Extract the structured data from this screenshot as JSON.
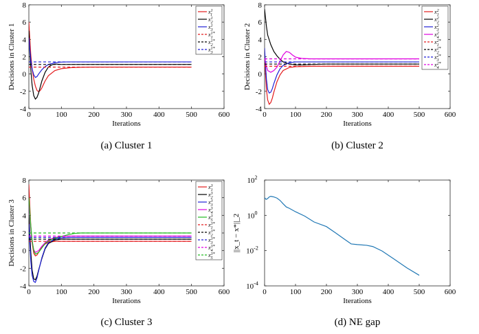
{
  "chart_data": [
    {
      "type": "line",
      "caption": "(a) Cluster 1",
      "xlabel": "Iterations",
      "ylabel": "Decisions in Cluster 1",
      "xlim": [
        0,
        600
      ],
      "ylim": [
        -4,
        8
      ],
      "xticks": [
        0,
        100,
        200,
        300,
        400,
        500,
        600
      ],
      "yticks": [
        -4,
        -2,
        0,
        2,
        4,
        6,
        8
      ],
      "legend_position": "top-right",
      "grid": false,
      "series": [
        {
          "name": "x_1^1",
          "color": "#e31a1c",
          "dash": false,
          "x": [
            0,
            3,
            6,
            10,
            15,
            20,
            25,
            30,
            35,
            40,
            50,
            60,
            80,
            100,
            130,
            160,
            200,
            250,
            300,
            500
          ],
          "values": [
            6.0,
            4.0,
            2.2,
            0.6,
            -0.6,
            -1.4,
            -1.9,
            -2.05,
            -1.9,
            -1.6,
            -0.8,
            -0.2,
            0.4,
            0.62,
            0.74,
            0.78,
            0.8,
            0.8,
            0.8,
            0.8
          ]
        },
        {
          "name": "x_2^1",
          "color": "#000000",
          "dash": false,
          "x": [
            0,
            3,
            6,
            10,
            15,
            20,
            25,
            30,
            40,
            50,
            60,
            70,
            80,
            100,
            130,
            160,
            200,
            300,
            500
          ],
          "values": [
            5.0,
            2.5,
            0.5,
            -1.3,
            -2.5,
            -2.9,
            -2.7,
            -2.2,
            -0.8,
            0.2,
            0.8,
            1.05,
            1.15,
            1.1,
            1.1,
            1.1,
            1.1,
            1.1,
            1.1
          ]
        },
        {
          "name": "x_3^1",
          "color": "#1f1fd6",
          "dash": false,
          "x": [
            0,
            3,
            6,
            10,
            15,
            20,
            25,
            30,
            40,
            50,
            60,
            80,
            100,
            120,
            150,
            200,
            300,
            500
          ],
          "values": [
            4.2,
            2.8,
            1.6,
            0.6,
            -0.1,
            -0.4,
            -0.3,
            0.0,
            0.5,
            0.85,
            1.1,
            1.3,
            1.38,
            1.4,
            1.4,
            1.4,
            1.4,
            1.4
          ]
        },
        {
          "name": "x_1^{1*}",
          "color": "#e31a1c",
          "dash": true,
          "x": [
            0,
            500
          ],
          "values": [
            0.8,
            0.8
          ]
        },
        {
          "name": "x_2^{1*}",
          "color": "#000000",
          "dash": true,
          "x": [
            0,
            500
          ],
          "values": [
            1.1,
            1.1
          ]
        },
        {
          "name": "x_3^{1*}",
          "color": "#1f1fd6",
          "dash": true,
          "x": [
            0,
            500
          ],
          "values": [
            1.4,
            1.4
          ]
        }
      ]
    },
    {
      "type": "line",
      "caption": "(b) Cluster 2",
      "xlabel": "Iterations",
      "ylabel": "Decisions in Cluster 2",
      "xlim": [
        0,
        600
      ],
      "ylim": [
        -4,
        8
      ],
      "xticks": [
        0,
        100,
        200,
        300,
        400,
        500,
        600
      ],
      "yticks": [
        -4,
        -2,
        0,
        2,
        4,
        6,
        8
      ],
      "legend_position": "top-right",
      "grid": false,
      "series": [
        {
          "name": "x_1^2",
          "color": "#e31a1c",
          "dash": false,
          "x": [
            0,
            3,
            6,
            10,
            15,
            20,
            25,
            30,
            40,
            50,
            60,
            80,
            100,
            130,
            160,
            200,
            300,
            500
          ],
          "values": [
            2.0,
            0.0,
            -1.8,
            -3.0,
            -3.5,
            -3.3,
            -2.8,
            -2.1,
            -0.9,
            -0.1,
            0.4,
            0.75,
            0.85,
            0.88,
            0.9,
            0.9,
            0.9,
            0.9
          ]
        },
        {
          "name": "x_2^2",
          "color": "#000000",
          "dash": false,
          "x": [
            0,
            3,
            6,
            10,
            20,
            30,
            40,
            50,
            60,
            80,
            100,
            120,
            150,
            200,
            300,
            500
          ],
          "values": [
            7.5,
            6.5,
            5.5,
            4.5,
            3.4,
            2.6,
            2.1,
            1.7,
            1.4,
            1.15,
            1.05,
            1.05,
            1.1,
            1.15,
            1.15,
            1.15
          ]
        },
        {
          "name": "x_3^2",
          "color": "#1f1fd6",
          "dash": false,
          "x": [
            0,
            3,
            6,
            10,
            15,
            20,
            25,
            30,
            40,
            50,
            60,
            80,
            100,
            130,
            200,
            300,
            500
          ],
          "values": [
            3.0,
            1.0,
            -0.6,
            -1.8,
            -2.2,
            -2.1,
            -1.7,
            -1.1,
            -0.1,
            0.6,
            1.0,
            1.3,
            1.4,
            1.4,
            1.4,
            1.4,
            1.4
          ]
        },
        {
          "name": "x_4^2",
          "color": "#e000e0",
          "dash": false,
          "x": [
            0,
            5,
            10,
            20,
            30,
            40,
            50,
            60,
            70,
            80,
            90,
            100,
            120,
            150,
            200,
            300,
            500
          ],
          "values": [
            1.8,
            1.0,
            0.4,
            0.2,
            0.4,
            0.8,
            1.5,
            2.2,
            2.6,
            2.5,
            2.2,
            1.95,
            1.8,
            1.75,
            1.75,
            1.75,
            1.75
          ]
        },
        {
          "name": "x_1^{2*}",
          "color": "#e31a1c",
          "dash": true,
          "x": [
            0,
            500
          ],
          "values": [
            0.9,
            0.9
          ]
        },
        {
          "name": "x_2^{2*}",
          "color": "#000000",
          "dash": true,
          "x": [
            0,
            500
          ],
          "values": [
            1.15,
            1.15
          ]
        },
        {
          "name": "x_3^{2*}",
          "color": "#1f1fd6",
          "dash": true,
          "x": [
            0,
            500
          ],
          "values": [
            1.4,
            1.4
          ]
        },
        {
          "name": "x_4^{2*}",
          "color": "#e000e0",
          "dash": true,
          "x": [
            0,
            500
          ],
          "values": [
            1.75,
            1.75
          ]
        }
      ]
    },
    {
      "type": "line",
      "caption": "(c) Cluster 3",
      "xlabel": "Iterations",
      "ylabel": "Decisions in Cluster 3",
      "xlim": [
        0,
        600
      ],
      "ylim": [
        -4,
        8
      ],
      "xticks": [
        0,
        100,
        200,
        300,
        400,
        500,
        600
      ],
      "yticks": [
        -4,
        -2,
        0,
        2,
        4,
        6,
        8
      ],
      "legend_position": "top-right",
      "grid": false,
      "series": [
        {
          "name": "x_1^3",
          "color": "#e31a1c",
          "dash": false,
          "x": [
            0,
            3,
            6,
            10,
            15,
            20,
            25,
            30,
            40,
            50,
            60,
            80,
            100,
            130,
            160,
            200,
            300,
            500
          ],
          "values": [
            7.5,
            5.0,
            2.8,
            0.9,
            -0.3,
            -0.6,
            -0.5,
            -0.2,
            0.4,
            0.75,
            0.95,
            1.05,
            1.05,
            1.05,
            1.05,
            1.05,
            1.05,
            1.05
          ]
        },
        {
          "name": "x_2^3",
          "color": "#000000",
          "dash": false,
          "x": [
            0,
            3,
            6,
            10,
            15,
            20,
            25,
            30,
            40,
            50,
            60,
            80,
            100,
            130,
            160,
            200,
            300,
            500
          ],
          "values": [
            4.0,
            1.8,
            -0.2,
            -2.2,
            -3.2,
            -3.3,
            -2.9,
            -2.2,
            -0.9,
            0.2,
            0.8,
            1.2,
            1.3,
            1.3,
            1.3,
            1.3,
            1.3,
            1.3
          ]
        },
        {
          "name": "x_3^3",
          "color": "#1f1fd6",
          "dash": false,
          "x": [
            0,
            3,
            6,
            10,
            15,
            20,
            25,
            30,
            40,
            50,
            60,
            80,
            100,
            130,
            160,
            200,
            300,
            500
          ],
          "values": [
            3.0,
            0.8,
            -1.2,
            -2.8,
            -3.5,
            -3.6,
            -3.1,
            -2.3,
            -0.8,
            0.3,
            0.9,
            1.3,
            1.45,
            1.5,
            1.5,
            1.5,
            1.5,
            1.5
          ]
        },
        {
          "name": "x_4^3",
          "color": "#e000e0",
          "dash": false,
          "x": [
            0,
            5,
            10,
            15,
            20,
            30,
            40,
            50,
            60,
            80,
            100,
            130,
            160,
            200,
            300,
            500
          ],
          "values": [
            5.5,
            3.0,
            1.0,
            0.1,
            -0.2,
            0.0,
            0.5,
            0.9,
            1.2,
            1.5,
            1.6,
            1.65,
            1.65,
            1.65,
            1.65,
            1.65
          ]
        },
        {
          "name": "x_5^3",
          "color": "#22bb22",
          "dash": false,
          "x": [
            0,
            5,
            10,
            15,
            20,
            30,
            40,
            50,
            60,
            80,
            100,
            120,
            140,
            160,
            200,
            300,
            500
          ],
          "values": [
            6.0,
            3.2,
            1.2,
            0.0,
            -0.4,
            -0.2,
            0.3,
            0.8,
            1.1,
            1.4,
            1.6,
            1.8,
            1.95,
            2.0,
            2.0,
            2.0,
            2.0
          ]
        },
        {
          "name": "x_1^{3*}",
          "color": "#e31a1c",
          "dash": true,
          "x": [
            0,
            500
          ],
          "values": [
            1.05,
            1.05
          ]
        },
        {
          "name": "x_2^{3*}",
          "color": "#000000",
          "dash": true,
          "x": [
            0,
            500
          ],
          "values": [
            1.3,
            1.3
          ]
        },
        {
          "name": "x_3^{3*}",
          "color": "#1f1fd6",
          "dash": true,
          "x": [
            0,
            500
          ],
          "values": [
            1.5,
            1.5
          ]
        },
        {
          "name": "x_4^{3*}",
          "color": "#e000e0",
          "dash": true,
          "x": [
            0,
            500
          ],
          "values": [
            1.65,
            1.65
          ]
        },
        {
          "name": "x_5^{3*}",
          "color": "#22bb22",
          "dash": true,
          "x": [
            0,
            500
          ],
          "values": [
            2.0,
            2.0
          ]
        }
      ]
    },
    {
      "type": "line",
      "caption": "(d) NE gap",
      "xlabel": "Iterations",
      "ylabel": "||x_t − x*||_2",
      "xlim": [
        0,
        600
      ],
      "ylim": [
        0.0001,
        100
      ],
      "yscale": "log",
      "xticks": [
        0,
        100,
        200,
        300,
        400,
        500,
        600
      ],
      "yticks": [
        0.0001,
        0.01,
        1,
        100
      ],
      "yticklabels": [
        {
          "base": "10",
          "exp": "-4"
        },
        {
          "base": "10",
          "exp": "-2"
        },
        {
          "base": "10",
          "exp": "0"
        },
        {
          "base": "10",
          "exp": "2"
        }
      ],
      "grid": false,
      "series": [
        {
          "color": "#1f77b4",
          "dash": false,
          "x": [
            0,
            5,
            10,
            15,
            20,
            25,
            30,
            40,
            50,
            60,
            70,
            80,
            100,
            130,
            160,
            200,
            230,
            260,
            280,
            300,
            330,
            350,
            380,
            420,
            460,
            500
          ],
          "values": [
            10,
            8,
            9,
            11,
            12,
            11.5,
            11,
            9.5,
            7,
            4.5,
            3,
            2.5,
            1.6,
            0.9,
            0.42,
            0.23,
            0.1,
            0.042,
            0.024,
            0.022,
            0.02,
            0.017,
            0.0095,
            0.0032,
            0.00105,
            0.0004
          ]
        }
      ]
    }
  ]
}
